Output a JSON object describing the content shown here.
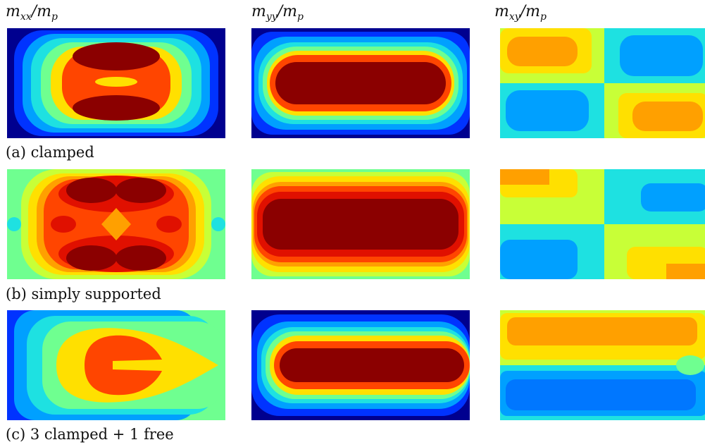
{
  "columns": [
    {
      "var": "m",
      "sub": "xx",
      "den": "m",
      "den_sub": "p"
    },
    {
      "var": "m",
      "sub": "yy",
      "den": "m",
      "den_sub": "p"
    },
    {
      "var": "m",
      "sub": "xy",
      "den": "m",
      "den_sub": "p"
    }
  ],
  "rows": [
    {
      "caption": "(a) clamped"
    },
    {
      "caption": "(b) simply supported"
    },
    {
      "caption": "(c) 3 clamped + 1 free"
    }
  ],
  "colormap": [
    "#00008f",
    "#0033ff",
    "#00a0ff",
    "#1ee1e1",
    "#6fff90",
    "#c8ff37",
    "#ffe000",
    "#ffa000",
    "#ff4500",
    "#e01000",
    "#8b0000"
  ]
}
